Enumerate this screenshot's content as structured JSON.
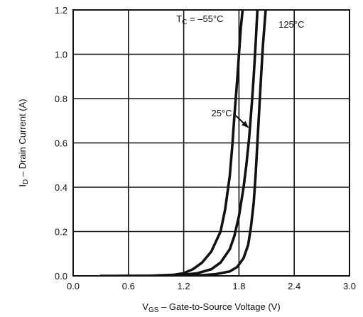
{
  "chart_data": {
    "type": "line",
    "title": "",
    "xlabel": {
      "main": "V",
      "sub": "GS",
      "rest": " – Gate-to-Source Voltage (V)"
    },
    "ylabel": {
      "main": "I",
      "sub": "D",
      "rest": " – Drain Current (A)"
    },
    "xlim": [
      0.0,
      3.0
    ],
    "ylim": [
      0.0,
      1.2
    ],
    "x_ticks": [
      "0.0",
      "0.6",
      "1.2",
      "1.8",
      "2.4",
      "3.0"
    ],
    "y_ticks": [
      "0.0",
      "0.2",
      "0.4",
      "0.6",
      "0.8",
      "1.0",
      "1.2"
    ],
    "x_tick_values": [
      0.0,
      0.6,
      1.2,
      1.8,
      2.4,
      3.0
    ],
    "y_tick_values": [
      0.0,
      0.2,
      0.4,
      0.6,
      0.8,
      1.0,
      1.2
    ],
    "grid": true,
    "series": [
      {
        "x": [
          0.3,
          0.8,
          1.1,
          1.2,
          1.3,
          1.4,
          1.5,
          1.6,
          1.65,
          1.7,
          1.73,
          1.75,
          1.78,
          1.8,
          1.82,
          1.84
        ],
        "y": [
          0.0,
          0.0,
          0.005,
          0.012,
          0.03,
          0.06,
          0.11,
          0.2,
          0.3,
          0.45,
          0.6,
          0.72,
          0.88,
          1.0,
          1.12,
          1.2
        ]
      },
      {
        "x": [
          0.5,
          1.0,
          1.2,
          1.35,
          1.5,
          1.6,
          1.7,
          1.75,
          1.8,
          1.85,
          1.88,
          1.91,
          1.94,
          1.96,
          1.98,
          2.0
        ],
        "y": [
          0.0,
          0.0,
          0.005,
          0.012,
          0.03,
          0.06,
          0.12,
          0.18,
          0.27,
          0.4,
          0.5,
          0.62,
          0.78,
          0.9,
          1.04,
          1.2
        ]
      },
      {
        "x": [
          0.7,
          1.2,
          1.4,
          1.55,
          1.7,
          1.78,
          1.85,
          1.9,
          1.93,
          1.96,
          1.98,
          2.0,
          2.02,
          2.04,
          2.06,
          2.09
        ],
        "y": [
          0.0,
          0.0,
          0.003,
          0.008,
          0.02,
          0.04,
          0.08,
          0.14,
          0.22,
          0.33,
          0.45,
          0.6,
          0.75,
          0.9,
          1.04,
          1.2
        ]
      }
    ],
    "annotations": [
      {
        "text_main": "T",
        "text_sub": "C",
        "text_rest": " = –55°C",
        "series_index": 0,
        "x": 1.12,
        "y": 1.145
      },
      {
        "text_main": "25°C",
        "text_sub": "",
        "text_rest": "",
        "series_index": 1,
        "x": 1.5,
        "y": 0.72,
        "arrow_to": [
          1.9,
          0.67
        ]
      },
      {
        "text_main": "125°C",
        "text_sub": "",
        "text_rest": "",
        "series_index": 2,
        "x": 2.23,
        "y": 1.12
      }
    ],
    "colors": {
      "line": "#111111",
      "grid": "#111111",
      "frame": "#111111",
      "background": "#ffffff"
    }
  }
}
